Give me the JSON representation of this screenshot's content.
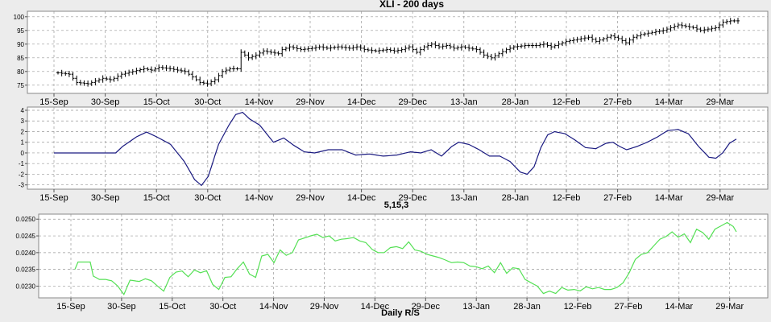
{
  "chart_data": [
    {
      "type": "ohlc",
      "title": "XLI - 200 days",
      "xlabel": "",
      "ylabel": "",
      "x_ticks": [
        "15-Sep",
        "30-Sep",
        "15-Oct",
        "30-Oct",
        "14-Nov",
        "29-Nov",
        "14-Dec",
        "29-Dec",
        "13-Jan",
        "28-Jan",
        "12-Feb",
        "27-Feb",
        "14-Mar",
        "29-Mar"
      ],
      "yticks": [
        75,
        80,
        85,
        90,
        95,
        100
      ],
      "ylim": [
        72,
        102
      ],
      "grid": true,
      "color": "#000000",
      "close_anchors": [
        [
          0,
          79.5
        ],
        [
          3,
          79
        ],
        [
          5,
          76
        ],
        [
          8,
          75.5
        ],
        [
          10,
          76.5
        ],
        [
          12,
          77.5
        ],
        [
          14,
          77
        ],
        [
          15,
          77.5
        ],
        [
          17,
          79
        ],
        [
          20,
          80
        ],
        [
          23,
          81
        ],
        [
          25,
          80.5
        ],
        [
          27,
          81.5
        ],
        [
          30,
          81
        ],
        [
          32,
          80.5
        ],
        [
          34,
          80
        ],
        [
          36,
          78
        ],
        [
          38,
          76
        ],
        [
          40,
          75.5
        ],
        [
          42,
          77
        ],
        [
          44,
          80
        ],
        [
          46,
          81
        ],
        [
          48,
          81
        ],
        [
          49,
          87
        ],
        [
          51,
          85
        ],
        [
          53,
          86
        ],
        [
          55,
          87.5
        ],
        [
          57,
          87
        ],
        [
          59,
          86.5
        ],
        [
          60,
          88
        ],
        [
          62,
          89
        ],
        [
          65,
          88
        ],
        [
          68,
          88.5
        ],
        [
          70,
          89
        ],
        [
          72,
          88.5
        ],
        [
          75,
          89
        ],
        [
          78,
          88.5
        ],
        [
          80,
          89
        ],
        [
          82,
          88
        ],
        [
          85,
          87.5
        ],
        [
          88,
          88
        ],
        [
          90,
          87.5
        ],
        [
          92,
          88
        ],
        [
          94,
          89
        ],
        [
          96,
          87
        ],
        [
          98,
          89
        ],
        [
          100,
          90
        ],
        [
          102,
          89
        ],
        [
          104,
          89.5
        ],
        [
          106,
          88.5
        ],
        [
          108,
          89
        ],
        [
          110,
          88.5
        ],
        [
          112,
          88
        ],
        [
          114,
          86
        ],
        [
          116,
          85
        ],
        [
          118,
          86.5
        ],
        [
          120,
          88
        ],
        [
          122,
          89
        ],
        [
          125,
          89.5
        ],
        [
          128,
          89.5
        ],
        [
          130,
          90
        ],
        [
          132,
          89
        ],
        [
          134,
          90
        ],
        [
          136,
          91
        ],
        [
          138,
          91.5
        ],
        [
          140,
          92
        ],
        [
          142,
          92.5
        ],
        [
          144,
          91
        ],
        [
          146,
          92
        ],
        [
          148,
          93
        ],
        [
          150,
          92
        ],
        [
          152,
          90.5
        ],
        [
          154,
          92.5
        ],
        [
          156,
          93.5
        ],
        [
          158,
          94
        ],
        [
          160,
          94.5
        ],
        [
          162,
          95
        ],
        [
          164,
          96
        ],
        [
          166,
          97
        ],
        [
          168,
          96.5
        ],
        [
          170,
          96
        ],
        [
          172,
          95
        ],
        [
          174,
          95.5
        ],
        [
          176,
          96
        ],
        [
          178,
          98
        ],
        [
          180,
          98.5
        ],
        [
          182,
          98.5
        ]
      ]
    },
    {
      "type": "line",
      "title": "5,15,3",
      "xlabel": "",
      "ylabel": "",
      "x_ticks": [
        "15-Sep",
        "30-Sep",
        "15-Oct",
        "30-Oct",
        "14-Nov",
        "29-Nov",
        "14-Dec",
        "29-Dec",
        "13-Jan",
        "28-Jan",
        "12-Feb",
        "27-Feb",
        "14-Mar",
        "29-Mar"
      ],
      "yticks": [
        -3,
        -2,
        -1,
        0,
        1,
        2,
        3,
        4
      ],
      "ylim": [
        -3.4,
        4.3
      ],
      "grid": true,
      "color": "#1a1a80",
      "anchors": [
        [
          0,
          0
        ],
        [
          18,
          0
        ],
        [
          20,
          0.6
        ],
        [
          24,
          1.5
        ],
        [
          27,
          1.95
        ],
        [
          30,
          1.5
        ],
        [
          34,
          0.8
        ],
        [
          38,
          -0.8
        ],
        [
          41,
          -2.5
        ],
        [
          43,
          -3.05
        ],
        [
          45,
          -2.2
        ],
        [
          48,
          0.8
        ],
        [
          51,
          2.6
        ],
        [
          53,
          3.6
        ],
        [
          55,
          3.8
        ],
        [
          57,
          3.2
        ],
        [
          60,
          2.6
        ],
        [
          62,
          1.8
        ],
        [
          64,
          1.0
        ],
        [
          67,
          1.4
        ],
        [
          70,
          0.7
        ],
        [
          73,
          0.1
        ],
        [
          76,
          0.0
        ],
        [
          80,
          0.3
        ],
        [
          84,
          0.3
        ],
        [
          88,
          -0.2
        ],
        [
          92,
          -0.1
        ],
        [
          96,
          -0.3
        ],
        [
          100,
          -0.2
        ],
        [
          104,
          0.1
        ],
        [
          107,
          0.0
        ],
        [
          110,
          0.3
        ],
        [
          113,
          -0.3
        ],
        [
          116,
          0.6
        ],
        [
          118,
          1.0
        ],
        [
          121,
          0.8
        ],
        [
          124,
          0.3
        ],
        [
          127,
          -0.3
        ],
        [
          130,
          -0.3
        ],
        [
          133,
          -0.8
        ],
        [
          136,
          -1.8
        ],
        [
          138,
          -2.0
        ],
        [
          140,
          -1.3
        ],
        [
          142,
          0.5
        ],
        [
          144,
          1.7
        ],
        [
          146,
          2.0
        ],
        [
          149,
          1.8
        ],
        [
          152,
          1.2
        ],
        [
          155,
          0.5
        ],
        [
          158,
          0.4
        ],
        [
          161,
          0.9
        ],
        [
          163,
          1.0
        ],
        [
          165,
          0.6
        ],
        [
          167,
          0.3
        ],
        [
          170,
          0.6
        ],
        [
          173,
          1.0
        ],
        [
          176,
          1.5
        ],
        [
          179,
          2.1
        ],
        [
          182,
          2.2
        ],
        [
          185,
          1.8
        ],
        [
          188,
          0.6
        ],
        [
          191,
          -0.4
        ],
        [
          193,
          -0.5
        ],
        [
          195,
          0.0
        ],
        [
          197,
          0.9
        ],
        [
          199,
          1.3
        ]
      ]
    },
    {
      "type": "line",
      "title": "Daily R/S",
      "xlabel": "",
      "ylabel": "",
      "x_ticks": [
        "15-Sep",
        "30-Sep",
        "15-Oct",
        "30-Oct",
        "14-Nov",
        "29-Nov",
        "14-Dec",
        "29-Dec",
        "13-Jan",
        "28-Jan",
        "12-Feb",
        "27-Feb",
        "14-Mar",
        "29-Mar"
      ],
      "yticks": [
        0.023,
        0.0235,
        0.024,
        0.0245,
        0.025
      ],
      "ylim": [
        0.02265,
        0.02515
      ],
      "grid": true,
      "color": "#55e055",
      "anchors": [
        [
          0,
          0.0235
        ],
        [
          1,
          0.02372
        ],
        [
          3,
          0.02372
        ],
        [
          5,
          0.02372
        ],
        [
          6,
          0.0233
        ],
        [
          8,
          0.0232
        ],
        [
          10,
          0.0232
        ],
        [
          12,
          0.02316
        ],
        [
          14,
          0.023
        ],
        [
          16,
          0.02275
        ],
        [
          18,
          0.02318
        ],
        [
          21,
          0.02314
        ],
        [
          23,
          0.02322
        ],
        [
          25,
          0.02316
        ],
        [
          27,
          0.023
        ],
        [
          29,
          0.02285
        ],
        [
          31,
          0.02326
        ],
        [
          33,
          0.02342
        ],
        [
          35,
          0.02345
        ],
        [
          37,
          0.02328
        ],
        [
          39,
          0.02348
        ],
        [
          41,
          0.0234
        ],
        [
          43,
          0.02346
        ],
        [
          45,
          0.02305
        ],
        [
          47,
          0.0229
        ],
        [
          49,
          0.02326
        ],
        [
          51,
          0.02328
        ],
        [
          53,
          0.02352
        ],
        [
          55,
          0.02372
        ],
        [
          57,
          0.02336
        ],
        [
          59,
          0.02326
        ],
        [
          61,
          0.0239
        ],
        [
          63,
          0.02395
        ],
        [
          65,
          0.0237
        ],
        [
          67,
          0.02408
        ],
        [
          69,
          0.02392
        ],
        [
          71,
          0.024
        ],
        [
          73,
          0.02438
        ],
        [
          75,
          0.02444
        ],
        [
          77,
          0.0245
        ],
        [
          79,
          0.02455
        ],
        [
          81,
          0.02445
        ],
        [
          83,
          0.0245
        ],
        [
          85,
          0.02435
        ],
        [
          87,
          0.0244
        ],
        [
          89,
          0.02442
        ],
        [
          91,
          0.02445
        ],
        [
          93,
          0.02435
        ],
        [
          95,
          0.0243
        ],
        [
          97,
          0.0241
        ],
        [
          99,
          0.024
        ],
        [
          101,
          0.024
        ],
        [
          103,
          0.02415
        ],
        [
          105,
          0.02418
        ],
        [
          107,
          0.02412
        ],
        [
          109,
          0.02432
        ],
        [
          111,
          0.02408
        ],
        [
          113,
          0.02404
        ],
        [
          115,
          0.02395
        ],
        [
          117,
          0.0239
        ],
        [
          119,
          0.02385
        ],
        [
          121,
          0.02378
        ],
        [
          123,
          0.0237
        ],
        [
          125,
          0.02372
        ],
        [
          127,
          0.0237
        ],
        [
          129,
          0.0236
        ],
        [
          131,
          0.02358
        ],
        [
          133,
          0.02352
        ],
        [
          135,
          0.0236
        ],
        [
          137,
          0.0234
        ],
        [
          139,
          0.0237
        ],
        [
          141,
          0.02338
        ],
        [
          143,
          0.02355
        ],
        [
          145,
          0.02352
        ],
        [
          147,
          0.0232
        ],
        [
          149,
          0.0231
        ],
        [
          151,
          0.023
        ],
        [
          153,
          0.02278
        ],
        [
          155,
          0.02285
        ],
        [
          157,
          0.02278
        ],
        [
          159,
          0.02296
        ],
        [
          161,
          0.02288
        ],
        [
          163,
          0.0229
        ],
        [
          165,
          0.02286
        ],
        [
          167,
          0.02298
        ],
        [
          169,
          0.02292
        ],
        [
          171,
          0.02296
        ],
        [
          173,
          0.0229
        ],
        [
          175,
          0.0229
        ],
        [
          177,
          0.02296
        ],
        [
          179,
          0.0231
        ],
        [
          181,
          0.0234
        ],
        [
          183,
          0.0238
        ],
        [
          185,
          0.02395
        ],
        [
          187,
          0.024
        ],
        [
          189,
          0.0242
        ],
        [
          191,
          0.0244
        ],
        [
          193,
          0.02448
        ],
        [
          195,
          0.02462
        ],
        [
          197,
          0.02446
        ],
        [
          199,
          0.02456
        ],
        [
          201,
          0.0243
        ],
        [
          203,
          0.0247
        ],
        [
          205,
          0.0246
        ],
        [
          207,
          0.0244
        ],
        [
          209,
          0.0247
        ],
        [
          211,
          0.0248
        ],
        [
          213,
          0.0249
        ],
        [
          215,
          0.02478
        ],
        [
          216,
          0.02462
        ]
      ]
    }
  ]
}
